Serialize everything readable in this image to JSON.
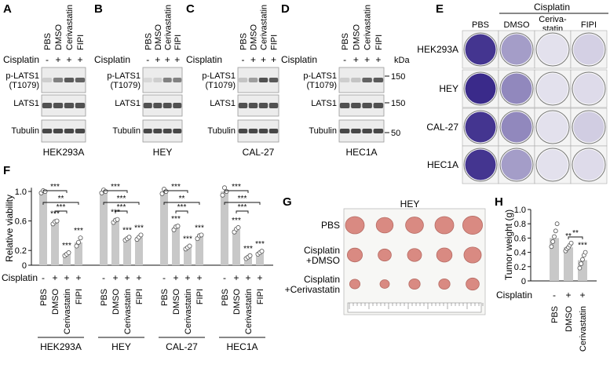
{
  "panel_letters": [
    "A",
    "B",
    "C",
    "D",
    "E",
    "F",
    "G",
    "H"
  ],
  "blots": {
    "lane_labels": [
      "PBS",
      "DMSO",
      "Cerivastatin",
      "FIPI"
    ],
    "treatment_label": "Cisplatin",
    "treatment_signs": [
      "-",
      "+",
      "+",
      "+"
    ],
    "row_labels": {
      "plats": [
        "p-LATS1",
        "(T1079)"
      ],
      "lats": "LATS1",
      "tubulin": "Tubulin"
    },
    "kda_label": "kDa",
    "markers": [
      "150",
      "150",
      "50"
    ],
    "cell_lines": [
      "HEK293A",
      "HEY",
      "CAL-27",
      "HEC1A"
    ],
    "plats_intensity": [
      [
        0.15,
        0.55,
        0.75,
        0.7
      ],
      [
        0.1,
        0.15,
        0.55,
        0.55
      ],
      [
        0.2,
        0.4,
        0.8,
        0.75
      ],
      [
        0.15,
        0.2,
        0.7,
        0.75
      ]
    ]
  },
  "colony": {
    "header": "Cisplatin",
    "columns": [
      "PBS",
      "DMSO",
      "Ceriva-\nstatin",
      "FIPI"
    ],
    "rows": [
      "HEK293A",
      "HEY",
      "CAL-27",
      "HEC1A"
    ],
    "density": [
      [
        0.95,
        0.45,
        0.12,
        0.2
      ],
      [
        1.0,
        0.55,
        0.12,
        0.15
      ],
      [
        0.95,
        0.55,
        0.12,
        0.22
      ],
      [
        0.95,
        0.45,
        0.12,
        0.15
      ]
    ]
  },
  "chart_data": [
    {
      "type": "bar",
      "panel": "F",
      "ylabel": "Relative viability",
      "ylim": [
        0,
        1.1
      ],
      "yticks": [
        "0",
        "0.2",
        "0.6",
        "1.0"
      ],
      "treatment_label": "Cisplatin",
      "treatment_signs": [
        "-",
        "+",
        "+",
        "+"
      ],
      "categories": [
        "PBS",
        "DMSO",
        "Cerivastatin",
        "FIPI"
      ],
      "groups": [
        {
          "name": "HEK293A",
          "values": [
            1.0,
            0.58,
            0.15,
            0.31
          ],
          "sig": [
            "",
            "***",
            "***",
            "***"
          ],
          "points": [
            [
              0.98,
              1.01,
              1.0
            ],
            [
              0.56,
              0.59,
              0.6
            ],
            [
              0.13,
              0.15,
              0.17
            ],
            [
              0.26,
              0.31,
              0.37
            ]
          ]
        },
        {
          "name": "HEY",
          "values": [
            1.0,
            0.6,
            0.36,
            0.38
          ],
          "sig": [
            "",
            "***",
            "***",
            "***"
          ],
          "points": [
            [
              0.98,
              1.02,
              1.0
            ],
            [
              0.58,
              0.61,
              0.62
            ],
            [
              0.34,
              0.36,
              0.38
            ],
            [
              0.35,
              0.38,
              0.41
            ]
          ]
        },
        {
          "name": "CAL-27",
          "values": [
            1.0,
            0.51,
            0.24,
            0.39
          ],
          "sig": [
            "",
            "***",
            "***",
            "***"
          ],
          "points": [
            [
              0.97,
              1.03,
              1.0
            ],
            [
              0.48,
              0.52,
              0.53
            ],
            [
              0.22,
              0.24,
              0.26
            ],
            [
              0.36,
              0.4,
              0.41
            ]
          ]
        },
        {
          "name": "HEC1A",
          "values": [
            1.0,
            0.48,
            0.11,
            0.17
          ],
          "sig": [
            "",
            "***",
            "***",
            "***"
          ],
          "points": [
            [
              0.95,
              1.05,
              1.0
            ],
            [
              0.45,
              0.49,
              0.51
            ],
            [
              0.09,
              0.11,
              0.13
            ],
            [
              0.15,
              0.17,
              0.19
            ]
          ]
        }
      ],
      "brackets": [
        {
          "group": 0,
          "from": 1,
          "to": 2,
          "label": "***"
        },
        {
          "group": 0,
          "from": 0,
          "to": 3,
          "label": "**"
        },
        {
          "group": 0,
          "from": 0,
          "to": 2,
          "label": "***"
        },
        {
          "group": 1,
          "from": 1,
          "to": 2,
          "label": "***"
        },
        {
          "group": 1,
          "from": 0,
          "to": 3,
          "label": "***"
        },
        {
          "group": 1,
          "from": 0,
          "to": 2,
          "label": "***"
        },
        {
          "group": 2,
          "from": 1,
          "to": 2,
          "label": "***"
        },
        {
          "group": 2,
          "from": 0,
          "to": 3,
          "label": "**"
        },
        {
          "group": 2,
          "from": 0,
          "to": 2,
          "label": "***"
        },
        {
          "group": 3,
          "from": 1,
          "to": 2,
          "label": "***"
        },
        {
          "group": 3,
          "from": 0,
          "to": 3,
          "label": "***"
        },
        {
          "group": 3,
          "from": 0,
          "to": 2,
          "label": "***"
        }
      ]
    },
    {
      "type": "bar",
      "panel": "H",
      "ylabel": "Tumor weight (g)",
      "ylim": [
        0,
        1.0
      ],
      "yticks": [
        "0",
        "0.2",
        "0.4",
        "0.6",
        "0.8",
        "1.0"
      ],
      "treatment_label": "Cisplatin",
      "treatment_signs": [
        "-",
        "+",
        "+"
      ],
      "categories": [
        "PBS",
        "DMSO",
        "Cerivastatin"
      ],
      "values": [
        0.6,
        0.47,
        0.29
      ],
      "sig": [
        "",
        "**",
        "***"
      ],
      "points": [
        [
          0.48,
          0.55,
          0.62,
          0.7,
          0.8
        ],
        [
          0.42,
          0.45,
          0.47,
          0.5,
          0.53
        ],
        [
          0.18,
          0.24,
          0.3,
          0.36,
          0.4
        ]
      ],
      "brackets": [
        {
          "from": 1,
          "to": 2,
          "label": "**"
        }
      ]
    }
  ],
  "tumor": {
    "title": "HEY",
    "rows": [
      "PBS",
      "Cisplatin\n+DMSO",
      "Cisplatin\n+Cerivastatin"
    ],
    "sizes": [
      [
        1.0,
        0.9,
        0.95,
        1.0,
        1.05
      ],
      [
        0.8,
        0.7,
        0.75,
        0.82,
        0.92
      ],
      [
        0.55,
        0.5,
        0.6,
        0.6,
        0.7
      ]
    ]
  },
  "colors": {
    "bar": "#c8c8c8",
    "point_fill": "#ffffff",
    "stain": "#3a2a8a",
    "tumor": "#d98a82",
    "gel_bg": "#ececec",
    "band": "#2a2a2a"
  }
}
